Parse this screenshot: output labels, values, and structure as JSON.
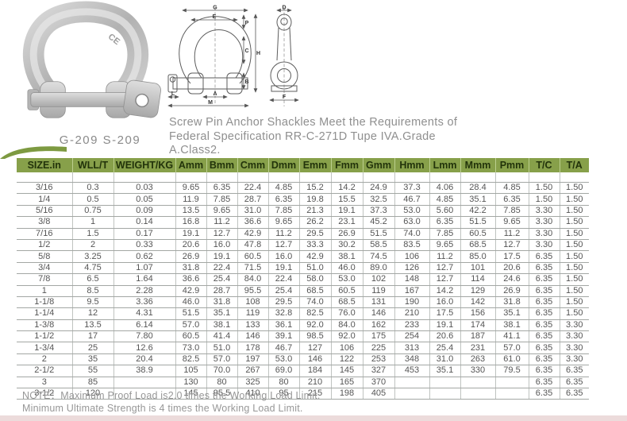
{
  "page": {
    "photo_caption": "G-209 S-209",
    "photo_marking": "CE",
    "description_lines": [
      "Screw Pin Anchor Shackles Meet the Requirements of",
      "Federal Specification RR-C-271D Tupe IVA.Grade",
      "A.Class2."
    ],
    "note_line1": "NOTE：Maximum Proof Load is2.0 times the Working Load Limit.",
    "note_line2": "Minimum Ultimate Strength is 4 times the Working Load Limit."
  },
  "diagram": {
    "front_labels": [
      "G",
      "E",
      "P",
      "C",
      "B",
      "H",
      "A",
      "M",
      "L"
    ],
    "side_labels": [
      "D",
      "F"
    ]
  },
  "colors": {
    "header_green": "#87a04a",
    "header_text": "#22330a",
    "table_line_h": "#a3a7a4",
    "table_line_v": "#bfc3c0",
    "gray_text": "#8f8f8f",
    "bottom_band": "#ecdbdb"
  },
  "table": {
    "headers": [
      "SIZE.in",
      "WLL/T",
      "WEIGHT/KG",
      "Amm",
      "Bmm",
      "Cmm",
      "Dmm",
      "Emm",
      "Fmm",
      "Gmm",
      "Hmm",
      "Lmm",
      "Mmm",
      "Pmm",
      "T/C",
      "T/A"
    ],
    "rows": [
      [
        "3/16",
        "0.3",
        "0.03",
        "9.65",
        "6.35",
        "22.4",
        "4.85",
        "15.2",
        "14.2",
        "24.9",
        "37.3",
        "4.06",
        "28.4",
        "4.85",
        "1.50",
        "1.50"
      ],
      [
        "1/4",
        "0.5",
        "0.05",
        "11.9",
        "7.85",
        "28.7",
        "6.35",
        "19.8",
        "15.5",
        "32.5",
        "46.7",
        "4.85",
        "35.1",
        "6.35",
        "1.50",
        "1.50"
      ],
      [
        "5/16",
        "0.75",
        "0.09",
        "13.5",
        "9.65",
        "31.0",
        "7.85",
        "21.3",
        "19.1",
        "37.3",
        "53.0",
        "5.60",
        "42.2",
        "7.85",
        "3.30",
        "1.50"
      ],
      [
        "3/8",
        "1",
        "0.14",
        "16.8",
        "11.2",
        "36.6",
        "9.65",
        "26.2",
        "23.1",
        "45.2",
        "63.0",
        "6.35",
        "51.5",
        "9.65",
        "3.30",
        "1.50"
      ],
      [
        "7/16",
        "1.5",
        "0.17",
        "19.1",
        "12.7",
        "42.9",
        "11.2",
        "29.5",
        "26.9",
        "51.5",
        "74.0",
        "7.85",
        "60.5",
        "11.2",
        "3.30",
        "1.50"
      ],
      [
        "1/2",
        "2",
        "0.33",
        "20.6",
        "16.0",
        "47.8",
        "12.7",
        "33.3",
        "30.2",
        "58.5",
        "83.5",
        "9.65",
        "68.5",
        "12.7",
        "3.30",
        "1.50"
      ],
      [
        "5/8",
        "3.25",
        "0.62",
        "26.9",
        "19.1",
        "60.5",
        "16.0",
        "42.9",
        "38.1",
        "74.5",
        "106",
        "11.2",
        "85.0",
        "17.5",
        "6.35",
        "1.50"
      ],
      [
        "3/4",
        "4.75",
        "1.07",
        "31.8",
        "22.4",
        "71.5",
        "19.1",
        "51.0",
        "46.0",
        "89.0",
        "126",
        "12.7",
        "101",
        "20.6",
        "6.35",
        "1.50"
      ],
      [
        "7/8",
        "6.5",
        "1.64",
        "36.6",
        "25.4",
        "84.0",
        "22.4",
        "58.0",
        "53.0",
        "102",
        "148",
        "12.7",
        "114",
        "24.6",
        "6.35",
        "1.50"
      ],
      [
        "1",
        "8.5",
        "2.28",
        "42.9",
        "28.7",
        "95.5",
        "25.4",
        "68.5",
        "60.5",
        "119",
        "167",
        "14.2",
        "129",
        "26.9",
        "6.35",
        "1.50"
      ],
      [
        "1-1/8",
        "9.5",
        "3.36",
        "46.0",
        "31.8",
        "108",
        "29.5",
        "74.0",
        "68.5",
        "131",
        "190",
        "16.0",
        "142",
        "31.8",
        "6.35",
        "1.50"
      ],
      [
        "1-1/4",
        "12",
        "4.31",
        "51.5",
        "35.1",
        "119",
        "32.8",
        "82.5",
        "76.0",
        "146",
        "210",
        "17.5",
        "156",
        "35.1",
        "6.35",
        "1.50"
      ],
      [
        "1-3/8",
        "13.5",
        "6.14",
        "57.0",
        "38.1",
        "133",
        "36.1",
        "92.0",
        "84.0",
        "162",
        "233",
        "19.1",
        "174",
        "38.1",
        "6.35",
        "3.30"
      ],
      [
        "1-1/2",
        "17",
        "7.80",
        "60.5",
        "41.4",
        "146",
        "39.1",
        "98.5",
        "92.0",
        "175",
        "254",
        "20.6",
        "187",
        "41.1",
        "6.35",
        "3.30"
      ],
      [
        "1-3/4",
        "25",
        "12.6",
        "73.0",
        "51.0",
        "178",
        "46.7",
        "127",
        "106",
        "225",
        "313",
        "25.4",
        "231",
        "57.0",
        "6.35",
        "3.30"
      ],
      [
        "2",
        "35",
        "20.4",
        "82.5",
        "57.0",
        "197",
        "53.0",
        "146",
        "122",
        "253",
        "348",
        "31.0",
        "263",
        "61.0",
        "6.35",
        "3.30"
      ],
      [
        "2-1/2",
        "55",
        "38.9",
        "105",
        "70.0",
        "267",
        "69.0",
        "184",
        "145",
        "327",
        "453",
        "35.1",
        "330",
        "79.5",
        "6.35",
        "6.35"
      ],
      [
        "3",
        "85",
        "",
        "130",
        "80",
        "325",
        "80",
        "210",
        "165",
        "370",
        "",
        "",
        "",
        "",
        "6.35",
        "6.35"
      ],
      [
        "3-1/2",
        "120",
        "",
        "145",
        "95.5",
        "410",
        "95",
        "215",
        "198",
        "405",
        "",
        "",
        "",
        "",
        "6.35",
        "6.35"
      ]
    ]
  }
}
